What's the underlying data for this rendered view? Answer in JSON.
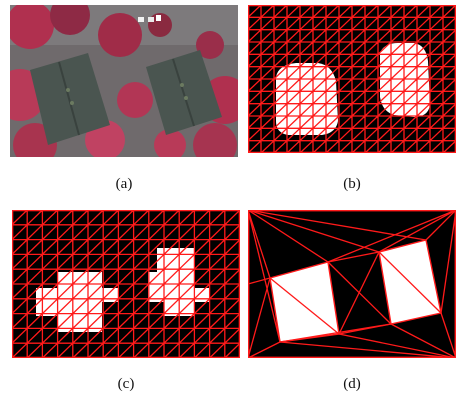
{
  "figure": {
    "panels": [
      {
        "id": "a",
        "caption": "(a)",
        "kind": "aerial-photo"
      },
      {
        "id": "b",
        "caption": "(b)",
        "kind": "regular-grid-triangulation-fine"
      },
      {
        "id": "c",
        "caption": "(c)",
        "kind": "regular-grid-triangulation-coarse"
      },
      {
        "id": "d",
        "caption": "(d)",
        "kind": "adaptive-triangulation"
      }
    ],
    "colors": {
      "mesh": "#ff1a1a",
      "background": "#000000",
      "foreground": "#ffffff",
      "roof": "#4a5550",
      "foliage": "#b0304f"
    }
  }
}
